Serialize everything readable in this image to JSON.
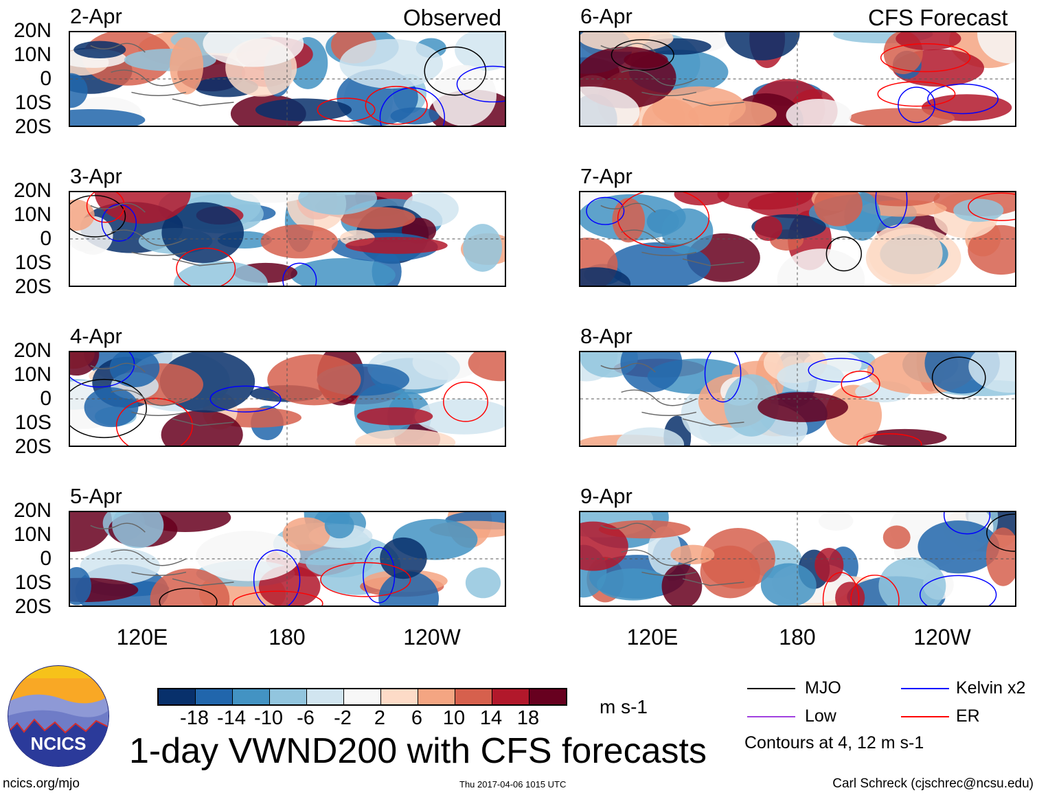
{
  "headers": {
    "observed": "Observed",
    "forecast": "CFS Forecast"
  },
  "panels": [
    {
      "date": "2-Apr",
      "column": "observed"
    },
    {
      "date": "3-Apr",
      "column": "observed"
    },
    {
      "date": "4-Apr",
      "column": "observed"
    },
    {
      "date": "5-Apr",
      "column": "observed"
    },
    {
      "date": "6-Apr",
      "column": "forecast"
    },
    {
      "date": "7-Apr",
      "column": "forecast"
    },
    {
      "date": "8-Apr",
      "column": "forecast"
    },
    {
      "date": "9-Apr",
      "column": "forecast"
    }
  ],
  "lat_labels": [
    "20N",
    "10N",
    "0",
    "10S",
    "20S"
  ],
  "lon_labels": [
    "120E",
    "180",
    "120W"
  ],
  "colorbar": {
    "colors": [
      "#08306b",
      "#2166ac",
      "#4393c3",
      "#92c5de",
      "#d1e5f0",
      "#f7f7f7",
      "#fddbc7",
      "#f4a582",
      "#d6604d",
      "#b2182b",
      "#67001f"
    ],
    "ticks": [
      "-18",
      "-14",
      "-10",
      "-6",
      "-2",
      "2",
      "6",
      "10",
      "14",
      "18"
    ],
    "units": "m s-1"
  },
  "legend": {
    "items": [
      {
        "label": "MJO",
        "color": "#000000"
      },
      {
        "label": "Kelvin x2",
        "color": "#0000ff"
      },
      {
        "label": "Low",
        "color": "#a040e0"
      },
      {
        "label": "ER",
        "color": "#ff0000"
      }
    ],
    "note": "Contours at 4, 12 m s-1"
  },
  "title": "1-day VWND200 with CFS forecasts",
  "logo_text": "NCICS",
  "footer": {
    "left": "ncics.org/mjo",
    "center": "Thu 2017-04-06 1015 UTC",
    "right": "Carl Schreck (cjschrec@ncsu.edu)"
  }
}
